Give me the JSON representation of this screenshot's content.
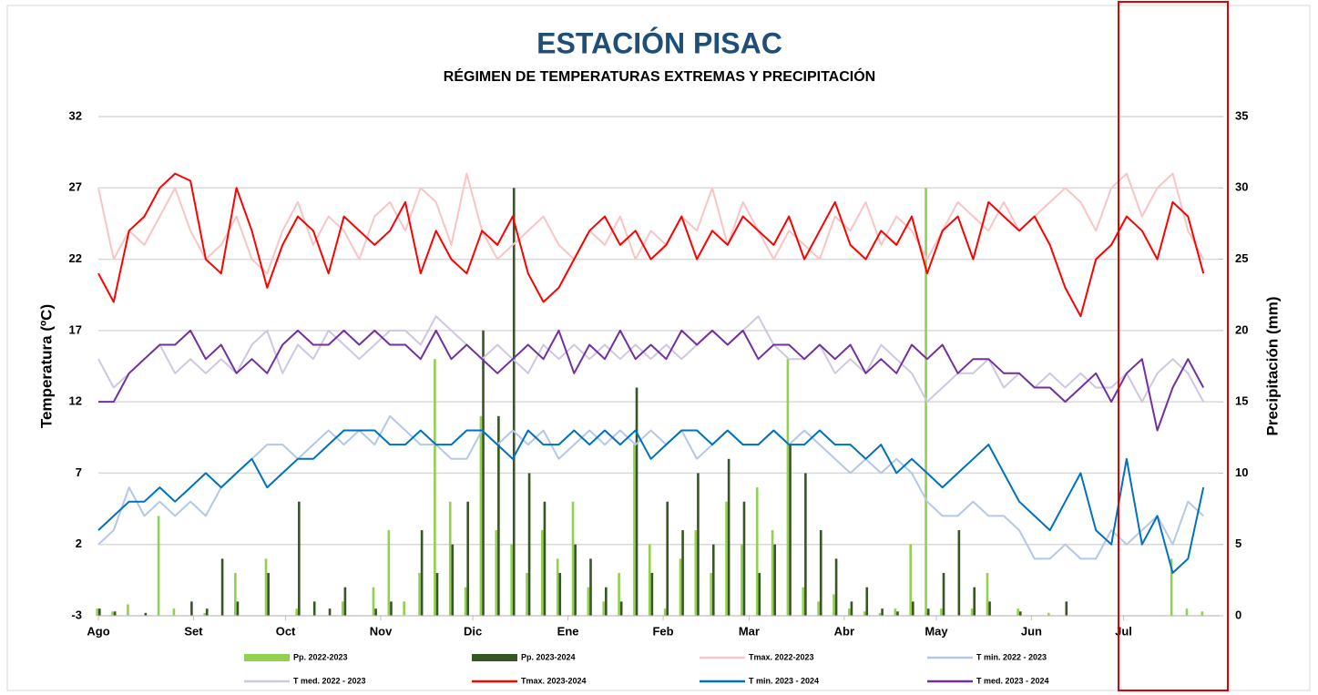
{
  "chart_data": {
    "type": "line",
    "title": "ESTACIÓN PISAC",
    "subtitle": "RÉGIMEN DE TEMPERATURAS EXTREMAS Y PRECIPITACIÓN",
    "ylabel": "Temperatura (ºC)",
    "y2label": "Precipitación (mm)",
    "grid": true,
    "xlim": [
      0,
      365
    ],
    "xticks": [
      {
        "value": 0,
        "label": "Ago"
      },
      {
        "value": 31,
        "label": "Set"
      },
      {
        "value": 61,
        "label": "Oct"
      },
      {
        "value": 92,
        "label": "Nov"
      },
      {
        "value": 122,
        "label": "Dic"
      },
      {
        "value": 153,
        "label": "Ene"
      },
      {
        "value": 184,
        "label": "Feb"
      },
      {
        "value": 212,
        "label": "Mar"
      },
      {
        "value": 243,
        "label": "Abr"
      },
      {
        "value": 273,
        "label": "May"
      },
      {
        "value": 304,
        "label": "Jun"
      },
      {
        "value": 334,
        "label": "Jul"
      }
    ],
    "ylim": [
      -3,
      32
    ],
    "yticks": [
      -3,
      2,
      7,
      12,
      17,
      22,
      27,
      32
    ],
    "y2lim": [
      0,
      35
    ],
    "y2ticks": [
      0,
      5,
      10,
      15,
      20,
      25,
      30,
      35
    ],
    "x": [
      0,
      5,
      10,
      15,
      20,
      25,
      30,
      35,
      40,
      45,
      50,
      55,
      60,
      65,
      70,
      75,
      80,
      85,
      90,
      95,
      100,
      105,
      110,
      115,
      120,
      125,
      130,
      135,
      140,
      145,
      150,
      155,
      160,
      165,
      170,
      175,
      180,
      185,
      190,
      195,
      200,
      205,
      210,
      215,
      220,
      225,
      230,
      235,
      240,
      245,
      250,
      255,
      260,
      265,
      270,
      275,
      280,
      285,
      290,
      295,
      300,
      305,
      310,
      315,
      320,
      325,
      330,
      335,
      340,
      345,
      350,
      355,
      360
    ],
    "series": [
      {
        "name": "Pp. 2022-2023",
        "type": "bar",
        "axis": "y2",
        "color": "#92d050",
        "values": [
          0.5,
          0.3,
          0.8,
          0,
          7,
          0.5,
          0,
          0.2,
          0,
          3,
          0,
          4,
          0,
          0.5,
          0,
          0,
          1,
          0,
          2,
          6,
          1,
          3,
          18,
          8,
          2,
          14,
          6,
          5,
          3,
          6,
          4,
          8,
          2,
          1,
          3,
          12,
          5,
          0.5,
          4,
          6,
          3,
          8,
          5,
          9,
          6,
          18,
          2,
          1,
          1.5,
          0.5,
          0.3,
          0.2,
          0.5,
          5,
          30,
          0.5,
          0,
          0.5,
          3,
          0,
          0.5,
          0,
          0.2,
          0,
          0,
          0,
          0,
          0,
          0,
          0,
          4,
          0.5,
          0.3
        ]
      },
      {
        "name": "Pp. 2023-2024",
        "type": "bar",
        "axis": "y2",
        "color": "#375623",
        "values": [
          0.5,
          0.3,
          0,
          0.2,
          0,
          0,
          1,
          0.5,
          4,
          1,
          0,
          3,
          0,
          8,
          1,
          0.5,
          2,
          0,
          0.5,
          1,
          0,
          6,
          3,
          5,
          8,
          20,
          14,
          30,
          10,
          8,
          3,
          5,
          4,
          2,
          1,
          16,
          3,
          8,
          6,
          10,
          5,
          11,
          8,
          3,
          5,
          12,
          10,
          6,
          4,
          1,
          2,
          0.5,
          0.3,
          1,
          0.5,
          3,
          6,
          2,
          1,
          0,
          0.3,
          0,
          0,
          1,
          0,
          0,
          0,
          0,
          0,
          0,
          0,
          0,
          0
        ]
      },
      {
        "name": "Tmax. 2022-2023",
        "color": "#f8c4c4",
        "values": [
          27,
          22,
          24,
          23,
          25,
          27,
          24,
          22,
          23,
          25,
          22,
          21,
          24,
          26,
          23,
          25,
          24,
          22,
          25,
          26,
          24,
          27,
          26,
          23,
          28,
          24,
          22,
          23,
          24,
          25,
          23,
          22,
          24,
          23,
          25,
          22,
          24,
          23,
          25,
          24,
          27,
          23,
          26,
          24,
          22,
          24,
          23,
          22,
          25,
          24,
          26,
          23,
          25,
          24,
          22,
          24,
          26,
          25,
          24,
          26,
          24,
          25,
          26,
          27,
          26,
          24,
          27,
          28,
          25,
          27,
          28,
          24,
          22
        ]
      },
      {
        "name": "T min. 2022 - 2023",
        "color": "#b4c7e7",
        "values": [
          2,
          3,
          6,
          4,
          5,
          4,
          5,
          4,
          6,
          7,
          8,
          9,
          9,
          8,
          9,
          10,
          9,
          10,
          9,
          11,
          10,
          9,
          9,
          8,
          8,
          10,
          9,
          10,
          9,
          10,
          8,
          9,
          10,
          9,
          10,
          9,
          10,
          9,
          10,
          8,
          9,
          10,
          9,
          9,
          10,
          9,
          10,
          9,
          8,
          7,
          8,
          7,
          8,
          7,
          5,
          4,
          4,
          5,
          4,
          4,
          3,
          1,
          1,
          2,
          1,
          1,
          3,
          2,
          3,
          4,
          2,
          5,
          4
        ]
      },
      {
        "name": "T med. 2022 - 2023",
        "color": "#cfc6e0",
        "values": [
          15,
          13,
          14,
          15,
          16,
          14,
          15,
          14,
          15,
          14,
          16,
          17,
          14,
          16,
          15,
          17,
          16,
          15,
          16,
          17,
          17,
          16,
          18,
          17,
          16,
          15,
          16,
          15,
          14,
          16,
          15,
          16,
          15,
          16,
          15,
          16,
          15,
          16,
          15,
          16,
          17,
          16,
          17,
          18,
          16,
          15,
          15,
          16,
          14,
          15,
          14,
          16,
          15,
          14,
          12,
          13,
          14,
          14,
          15,
          13,
          14,
          13,
          14,
          13,
          14,
          13,
          13,
          14,
          12,
          14,
          15,
          14,
          12
        ]
      },
      {
        "name": "Tmax. 2023-2024",
        "color": "#ff0000",
        "values": [
          21,
          19,
          24,
          25,
          27,
          28,
          27.5,
          22,
          21,
          27,
          24,
          20,
          23,
          25,
          24,
          21,
          25,
          24,
          23,
          24,
          26,
          21,
          24,
          22,
          21,
          24,
          23,
          25,
          21,
          19,
          20,
          22,
          24,
          25,
          23,
          24,
          22,
          23,
          25,
          22,
          24,
          23,
          25,
          24,
          23,
          25,
          22,
          24,
          26,
          23,
          22,
          24,
          23,
          25,
          21,
          24,
          25,
          22,
          26,
          25,
          24,
          25,
          23,
          20,
          18,
          22,
          23,
          25,
          24,
          22,
          26,
          25,
          21
        ]
      },
      {
        "name": "T min. 2023 - 2024",
        "color": "#0070c0",
        "values": [
          3,
          4,
          5,
          5,
          6,
          5,
          6,
          7,
          6,
          7,
          8,
          6,
          7,
          8,
          8,
          9,
          10,
          10,
          10,
          9,
          9,
          10,
          9,
          9,
          10,
          10,
          9,
          8,
          10,
          9,
          9,
          10,
          9,
          10,
          9,
          10,
          8,
          9,
          10,
          10,
          9,
          10,
          9,
          9,
          10,
          9,
          9,
          10,
          9,
          9,
          8,
          9,
          7,
          8,
          7,
          6,
          7,
          8,
          9,
          7,
          5,
          4,
          3,
          5,
          7,
          3,
          2,
          8,
          2,
          4,
          0,
          1,
          6
        ]
      },
      {
        "name": "T med. 2023 - 2024",
        "color": "#7030a0",
        "values": [
          12,
          12,
          14,
          15,
          16,
          16,
          17,
          15,
          16,
          14,
          15,
          14,
          16,
          17,
          16,
          16,
          17,
          16,
          17,
          16,
          16,
          15,
          17,
          15,
          16,
          15,
          14,
          15,
          16,
          15,
          17,
          14,
          16,
          15,
          17,
          15,
          16,
          15,
          17,
          16,
          17,
          16,
          17,
          15,
          16,
          16,
          15,
          16,
          15,
          16,
          14,
          15,
          14,
          16,
          15,
          16,
          14,
          15,
          15,
          14,
          14,
          13,
          13,
          12,
          13,
          14,
          12,
          14,
          15,
          10,
          13,
          15,
          13
        ]
      }
    ]
  }
}
